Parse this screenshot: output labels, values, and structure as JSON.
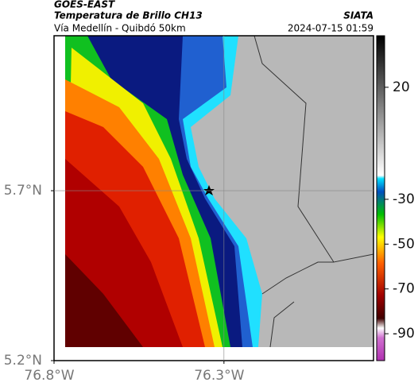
{
  "header": {
    "title": "GOES-EAST",
    "subtitle": "Temperatura de Brillo CH13",
    "location": "Vía Medellín - Quibdó 50km",
    "source": "SIATA",
    "datetime": "2024-07-15 01:59"
  },
  "map": {
    "xlim": [
      -76.8,
      -75.86
    ],
    "ylim": [
      5.2,
      6.156
    ],
    "xticks": [
      {
        "value": -76.8,
        "label": "76.8°W"
      },
      {
        "value": -76.3,
        "label": "76.3°W"
      }
    ],
    "yticks": [
      {
        "value": 5.2,
        "label": "5.2°N"
      },
      {
        "value": 5.7,
        "label": "5.7°N"
      }
    ],
    "grid": true
  },
  "colorbar": {
    "lim": [
      -102,
      43
    ],
    "ticks": [
      20,
      -30,
      -50,
      -70,
      -90
    ]
  }
}
